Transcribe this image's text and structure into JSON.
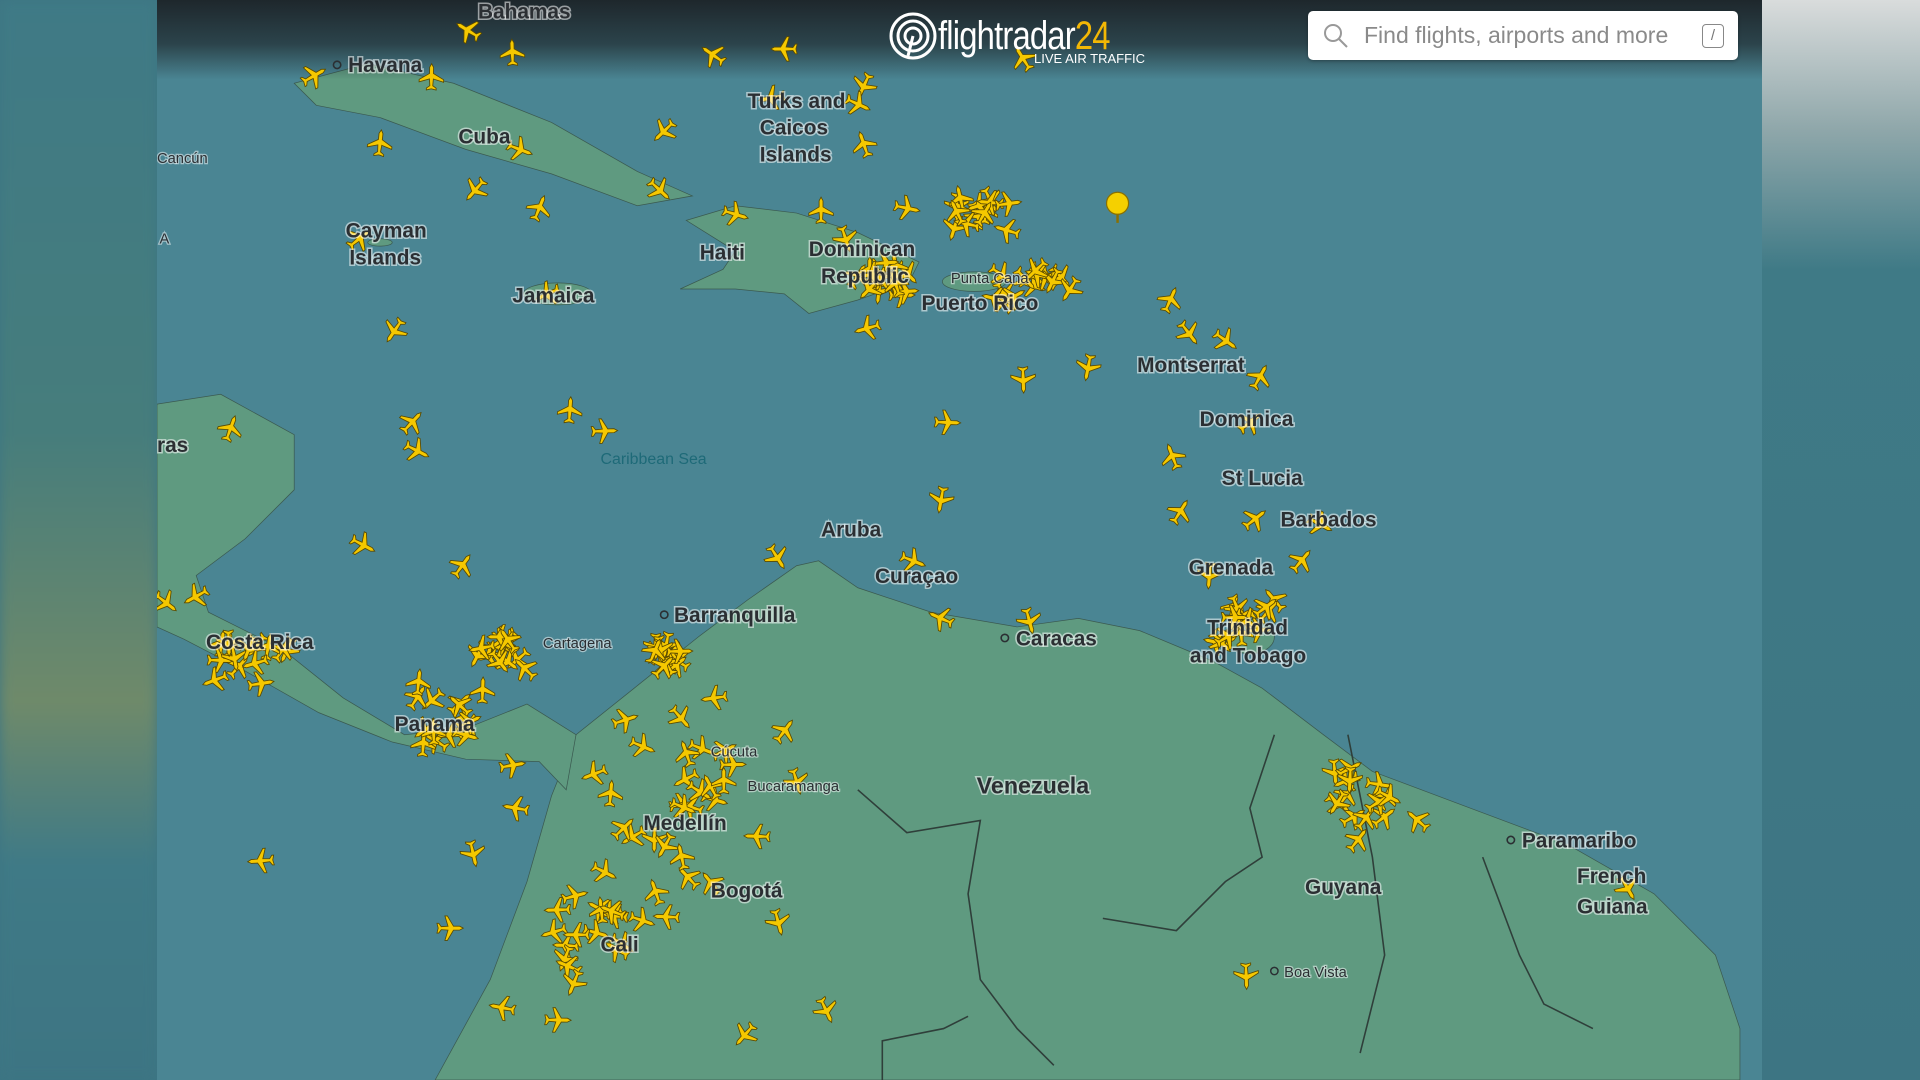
{
  "header": {
    "logo_text": "flightradar",
    "logo_number": "24",
    "tagline": "LIVE AIR TRAFFIC",
    "search_placeholder": "Find flights, airports and more",
    "search_shortcut": "/"
  },
  "map": {
    "colors": {
      "water": "#4a8593",
      "land": "#5f9a80",
      "plane": "#f5c800",
      "brand_accent": "#f2b705"
    },
    "labels": {
      "havana": "Havana",
      "cuba": "Cuba",
      "cancun": "Cancún",
      "turks": "Turks and",
      "caicos": "Caicos",
      "islands": "Islands",
      "cayman": "Cayman",
      "cayman_islands": "Islands",
      "haiti": "Haiti",
      "dominican": "Dominican",
      "republic": "Republic",
      "puerto_rico": "Puerto Rico",
      "punta_cana": "Punta Cana",
      "jamaica": "Jamaica",
      "montserrat": "Montserrat",
      "dominica": "Dominica",
      "st_lucia": "St Lucia",
      "barbados": "Barbados",
      "grenada": "Grenada",
      "trinidad": "Trinidad",
      "and_tobago": "and Tobago",
      "caribbean_sea": "Caribbean Sea",
      "aruba": "Aruba",
      "curacao": "Curaçao",
      "barranquilla": "Barranquilla",
      "cartagena": "Cartagena",
      "caracas": "Caracas",
      "costa_rica": "Costa Rica",
      "panama": "Panama",
      "cucuta": "Cúcuta",
      "bucaramanga": "Bucaramanga",
      "venezuela": "Venezuela",
      "medellin": "Medellín",
      "bogota": "Bogotá",
      "cali": "Cali",
      "guyana": "Guyana",
      "paramaribo": "Paramaribo",
      "french": "French",
      "guiana": "Guiana",
      "boa_vista": "Boa Vista",
      "honduras_partial": "ras",
      "partial_a": "A",
      "bahamas_partial": "Bahamas"
    }
  }
}
